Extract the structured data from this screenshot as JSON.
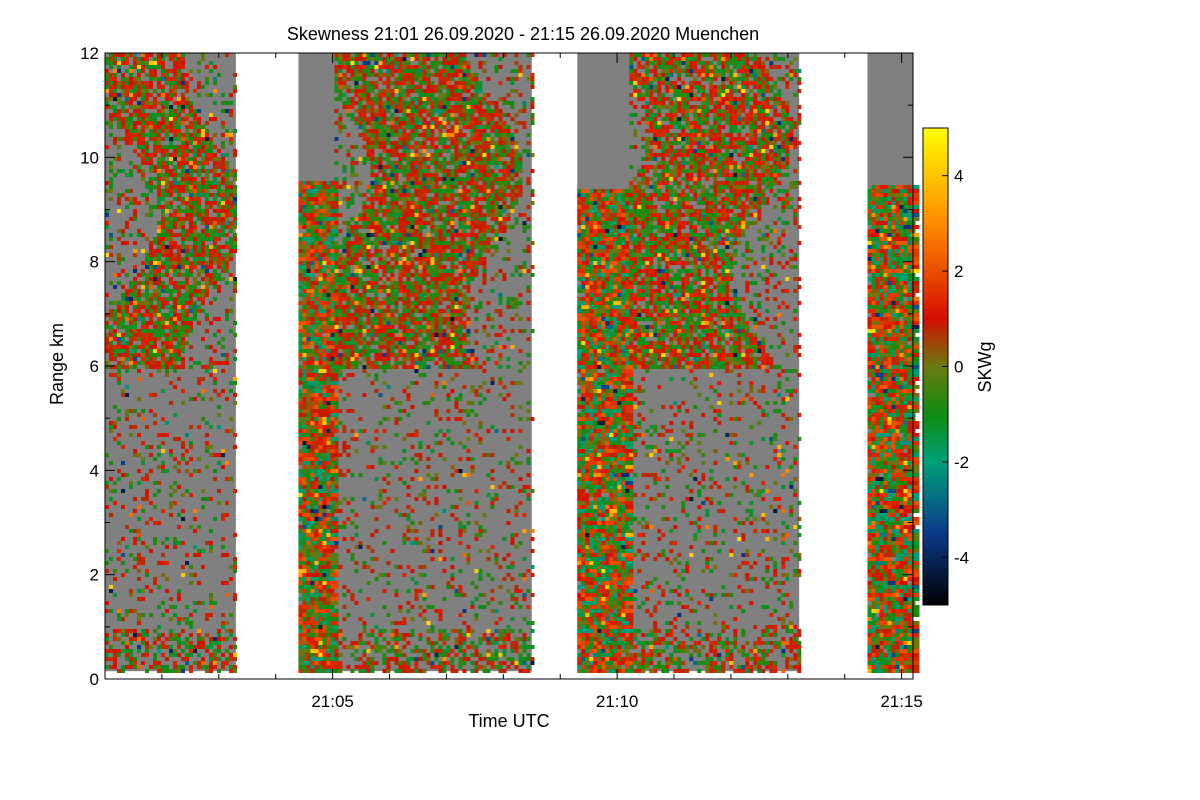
{
  "chart_data": {
    "type": "heatmap",
    "title": "Skewness   21:01 26.09.2020 - 21:15 26.09.2020 Muenchen",
    "xlabel": "Time UTC",
    "ylabel": "Range km",
    "x_ticks": [
      {
        "minute": 5,
        "label": "21:05"
      },
      {
        "minute": 10,
        "label": "21:10"
      },
      {
        "minute": 15,
        "label": "21:15"
      }
    ],
    "x_minor_ticks_minutes": [
      1,
      2,
      3,
      4,
      6,
      7,
      8,
      9,
      11,
      12,
      13,
      14
    ],
    "xlim_minutes_after_21h": [
      1,
      15.2
    ],
    "y_ticks": [
      0,
      2,
      4,
      6,
      8,
      10,
      12
    ],
    "ylim_km": [
      0,
      12
    ],
    "colorbar": {
      "label": "SKWg",
      "range": [
        -5,
        5
      ],
      "ticks": [
        -4,
        -2,
        0,
        2,
        4
      ],
      "stops": [
        {
          "value": -5,
          "color": "#000000"
        },
        {
          "value": -3.5,
          "color": "#0b3a8a"
        },
        {
          "value": -2,
          "color": "#00a07a"
        },
        {
          "value": -1,
          "color": "#108c10"
        },
        {
          "value": 0,
          "color": "#6b7a10"
        },
        {
          "value": 1,
          "color": "#d40f00"
        },
        {
          "value": 3,
          "color": "#ff8c00"
        },
        {
          "value": 5,
          "color": "#ffff00"
        }
      ]
    },
    "background_color": "#808080",
    "segments": [
      {
        "t_start": 1.0,
        "t_end": 3.3,
        "dense_top_km": 12.0,
        "bottom_km": 0.15
      },
      {
        "t_start": 4.4,
        "t_end": 8.5,
        "dense_top_km": 12.0,
        "bottom_km": 0.15,
        "striped_part_end": 5.0,
        "striped_top_km": 9.6
      },
      {
        "t_start": 9.3,
        "t_end": 13.2,
        "dense_top_km": 12.0,
        "bottom_km": 0.15,
        "striped_part_end": 10.2,
        "striped_top_km": 9.4
      },
      {
        "t_start": 14.4,
        "t_end": 15.2,
        "dense_top_km": 12.0,
        "bottom_km": 0.15,
        "striped_part_end": 15.2,
        "striped_top_km": 9.5
      }
    ]
  }
}
